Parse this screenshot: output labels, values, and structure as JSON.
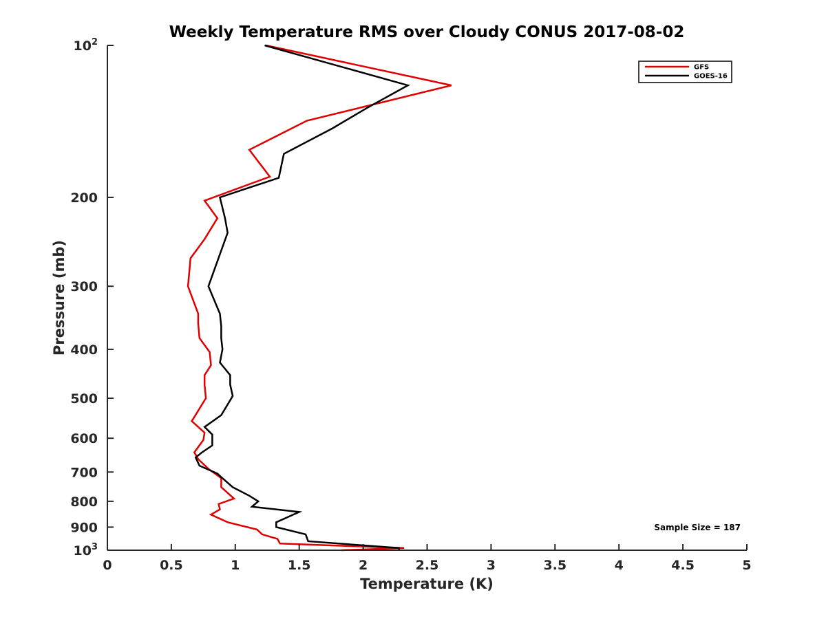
{
  "chart_data": {
    "type": "line",
    "title": "Weekly Temperature RMS over Cloudy CONUS 2017-08-02",
    "xlabel": "Temperature (K)",
    "ylabel": "Pressure (mb)",
    "xlim": [
      0,
      5
    ],
    "ylim": [
      100,
      1000
    ],
    "y_scale": "log",
    "y_reversed": true,
    "grid": false,
    "legend_position": "top-right",
    "x_ticks": [
      "0",
      "0.5",
      "1",
      "1.5",
      "2",
      "2.5",
      "3",
      "3.5",
      "4",
      "4.5",
      "5"
    ],
    "y_ticks": [
      {
        "value": 100,
        "label": "10",
        "sup": "2"
      },
      {
        "value": 200,
        "label": "200",
        "sup": ""
      },
      {
        "value": 300,
        "label": "300",
        "sup": ""
      },
      {
        "value": 400,
        "label": "400",
        "sup": ""
      },
      {
        "value": 500,
        "label": "500",
        "sup": ""
      },
      {
        "value": 600,
        "label": "600",
        "sup": ""
      },
      {
        "value": 700,
        "label": "700",
        "sup": ""
      },
      {
        "value": 800,
        "label": "800",
        "sup": ""
      },
      {
        "value": 900,
        "label": "900",
        "sup": ""
      },
      {
        "value": 1000,
        "label": "10",
        "sup": "3"
      }
    ],
    "series": [
      {
        "name": "GFS",
        "color": "#e00000",
        "x": [
          1.24,
          2.69,
          1.56,
          1.11,
          1.27,
          0.76,
          0.86,
          0.76,
          0.65,
          0.63,
          0.71,
          0.71,
          0.72,
          0.8,
          0.81,
          0.76,
          0.76,
          0.77,
          0.66,
          0.76,
          0.75,
          0.68,
          0.71,
          0.79,
          0.89,
          0.89,
          0.99,
          0.87,
          0.88,
          0.81,
          0.94,
          1.17,
          1.21,
          1.33,
          1.35,
          2.32,
          1.83
        ],
        "y": [
          100,
          120,
          141,
          161,
          182,
          203,
          220,
          242,
          264,
          300,
          340,
          355,
          380,
          405,
          430,
          450,
          470,
          500,
          555,
          585,
          605,
          640,
          660,
          690,
          720,
          750,
          790,
          810,
          830,
          850,
          880,
          910,
          930,
          950,
          970,
          990,
          1000
        ]
      },
      {
        "name": "GOES-16",
        "color": "#000000",
        "x": [
          1.23,
          2.35,
          2.03,
          1.76,
          1.38,
          1.34,
          0.88,
          0.92,
          0.94,
          0.79,
          0.88,
          0.89,
          0.89,
          0.9,
          0.88,
          0.96,
          0.96,
          0.98,
          0.89,
          0.76,
          0.82,
          0.82,
          0.74,
          0.69,
          0.72,
          0.86,
          0.9,
          0.98,
          1.11,
          1.18,
          1.13,
          1.5,
          1.41,
          1.32,
          1.32,
          1.55,
          1.57,
          2.28,
          2.28
        ],
        "y": [
          100,
          120,
          133,
          146,
          164,
          183,
          200,
          220,
          235,
          300,
          340,
          360,
          380,
          400,
          425,
          450,
          470,
          495,
          540,
          570,
          590,
          620,
          640,
          655,
          680,
          705,
          720,
          750,
          780,
          800,
          820,
          840,
          860,
          880,
          900,
          930,
          960,
          990,
          1000
        ]
      }
    ],
    "annotation": "Sample Size = 187"
  }
}
